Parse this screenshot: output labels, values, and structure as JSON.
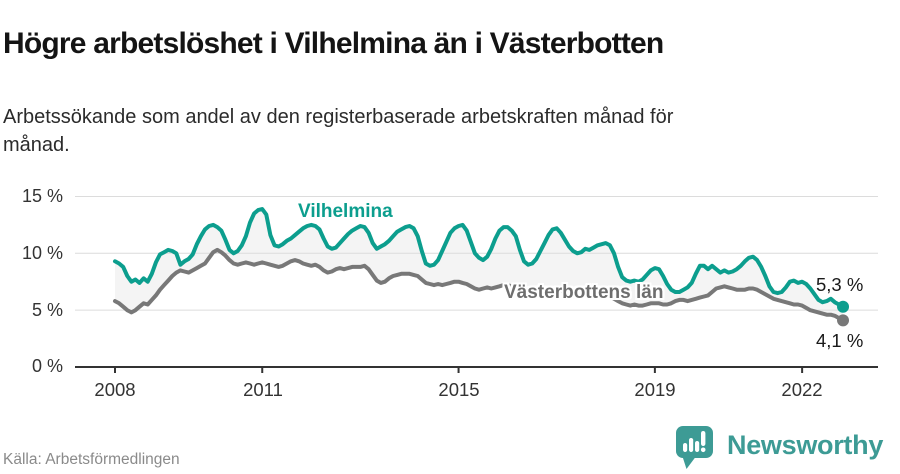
{
  "header": {
    "title": "Högre arbetslöshet i Vilhelmina än i Västerbotten",
    "subtitle_lines": [
      "Arbetssökande som andel av den registerbaserade arbetskraften månad för",
      "månad."
    ]
  },
  "chart_data": {
    "type": "line",
    "x_unit": "month",
    "x_range": [
      "2008-01",
      "2022-11"
    ],
    "x_tick_labels": [
      "2008",
      "2011",
      "2015",
      "2019",
      "2022"
    ],
    "y_ticks": [
      0,
      5,
      10,
      15
    ],
    "y_tick_labels": [
      "0 %",
      "5 %",
      "10 %",
      "15 %"
    ],
    "ylim": [
      0,
      15
    ],
    "grid": true,
    "grid_color": "#dcdcdc",
    "axis_color": "#333333",
    "fill_between_color": "#f4f4f4",
    "legend_position": "inline-labels",
    "series": [
      {
        "name": "Vilhelmina",
        "color": "#0c9e8e",
        "end_label": "5,3 %",
        "values": [
          9.3,
          9.1,
          8.8,
          8.0,
          7.5,
          7.7,
          7.4,
          7.8,
          7.5,
          8.2,
          9.2,
          9.9,
          10.1,
          10.3,
          10.2,
          10.0,
          9.0,
          9.3,
          9.5,
          9.9,
          10.8,
          11.5,
          12.1,
          12.4,
          12.5,
          12.3,
          12.0,
          11.2,
          10.3,
          10.0,
          10.2,
          10.7,
          11.5,
          12.7,
          13.5,
          13.8,
          13.9,
          13.4,
          11.6,
          10.7,
          10.6,
          10.8,
          11.1,
          11.3,
          11.6,
          11.9,
          12.2,
          12.4,
          12.5,
          12.4,
          12.1,
          11.3,
          10.6,
          10.4,
          10.5,
          10.9,
          11.3,
          11.7,
          12.0,
          12.2,
          12.4,
          12.3,
          11.8,
          10.9,
          10.4,
          10.6,
          10.8,
          11.1,
          11.5,
          11.9,
          12.1,
          12.3,
          12.4,
          12.2,
          11.5,
          10.2,
          9.1,
          8.9,
          9.0,
          9.4,
          10.2,
          11.0,
          11.8,
          12.2,
          12.4,
          12.5,
          12.0,
          11.0,
          10.0,
          9.6,
          9.4,
          9.7,
          10.4,
          11.3,
          12.0,
          12.3,
          12.3,
          12.0,
          11.5,
          10.3,
          9.3,
          9.0,
          9.1,
          9.5,
          10.2,
          10.9,
          11.6,
          12.1,
          12.2,
          11.8,
          11.2,
          10.6,
          10.2,
          10.0,
          10.1,
          10.4,
          10.3,
          10.5,
          10.7,
          10.8,
          10.9,
          10.7,
          10.0,
          8.8,
          7.9,
          7.6,
          7.5,
          7.6,
          7.5,
          7.7,
          8.1,
          8.5,
          8.7,
          8.6,
          8.0,
          7.3,
          6.8,
          6.6,
          6.6,
          6.8,
          7.0,
          7.4,
          8.2,
          8.9,
          8.9,
          8.6,
          8.9,
          8.6,
          8.3,
          8.5,
          8.3,
          8.4,
          8.6,
          8.9,
          9.3,
          9.6,
          9.7,
          9.4,
          8.8,
          8.0,
          7.1,
          6.6,
          6.5,
          6.6,
          7.0,
          7.5,
          7.6,
          7.4,
          7.5,
          7.3,
          6.9,
          6.4,
          5.9,
          5.7,
          5.8,
          6.0,
          5.7,
          5.5,
          5.3
        ]
      },
      {
        "name": "Västerbottens län",
        "color": "#787878",
        "end_label": "4,1 %",
        "values": [
          5.8,
          5.6,
          5.3,
          5.0,
          4.8,
          5.0,
          5.3,
          5.6,
          5.5,
          5.9,
          6.3,
          6.8,
          7.2,
          7.6,
          8.0,
          8.3,
          8.5,
          8.4,
          8.3,
          8.5,
          8.7,
          8.9,
          9.1,
          9.6,
          10.1,
          10.3,
          10.1,
          9.8,
          9.4,
          9.1,
          9.0,
          9.1,
          9.2,
          9.1,
          9.0,
          9.1,
          9.2,
          9.1,
          9.0,
          8.9,
          8.8,
          8.9,
          9.1,
          9.3,
          9.4,
          9.3,
          9.1,
          9.0,
          8.9,
          9.0,
          8.8,
          8.5,
          8.3,
          8.4,
          8.6,
          8.7,
          8.6,
          8.7,
          8.8,
          8.8,
          8.8,
          8.9,
          8.6,
          8.1,
          7.6,
          7.4,
          7.5,
          7.8,
          8.0,
          8.1,
          8.2,
          8.2,
          8.2,
          8.1,
          8.0,
          7.7,
          7.4,
          7.3,
          7.2,
          7.3,
          7.2,
          7.3,
          7.4,
          7.5,
          7.5,
          7.4,
          7.3,
          7.1,
          6.9,
          6.8,
          6.9,
          7.0,
          6.9,
          7.0,
          7.1,
          7.2,
          7.2,
          7.1,
          7.0,
          6.8,
          6.6,
          6.5,
          6.6,
          6.7,
          6.6,
          6.6,
          6.7,
          6.8,
          6.8,
          6.7,
          6.6,
          6.4,
          6.2,
          6.1,
          6.2,
          6.3,
          6.2,
          6.2,
          6.3,
          6.4,
          6.3,
          6.2,
          6.0,
          5.8,
          5.6,
          5.5,
          5.4,
          5.5,
          5.4,
          5.4,
          5.5,
          5.6,
          5.6,
          5.6,
          5.5,
          5.5,
          5.6,
          5.8,
          5.9,
          5.9,
          5.8,
          5.9,
          6.0,
          6.1,
          6.2,
          6.3,
          6.6,
          6.9,
          7.0,
          7.1,
          7.0,
          6.9,
          6.8,
          6.8,
          6.8,
          6.9,
          6.9,
          6.8,
          6.6,
          6.4,
          6.2,
          6.0,
          5.9,
          5.8,
          5.7,
          5.6,
          5.5,
          5.5,
          5.4,
          5.2,
          5.0,
          4.9,
          4.8,
          4.7,
          4.6,
          4.6,
          4.5,
          4.3,
          4.1
        ]
      }
    ]
  },
  "footer": {
    "source": "Källa: Arbetsförmedlingen",
    "logo_text": "Newsworthy",
    "logo_color": "#3d9b95",
    "logo_icon": "bar-chart-speech-bubble"
  }
}
